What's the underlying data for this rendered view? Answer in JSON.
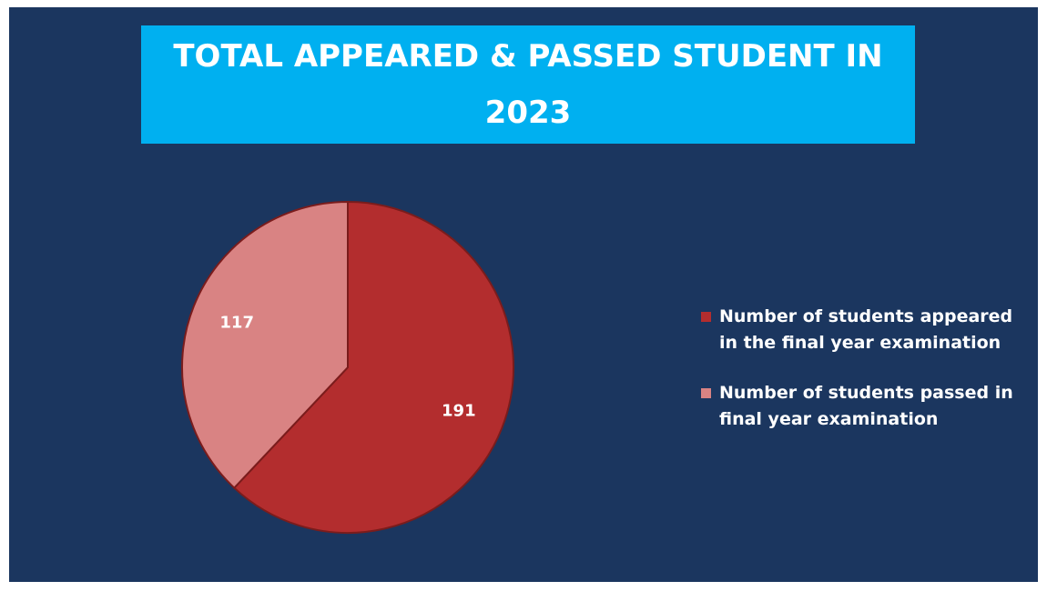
{
  "chart_data": {
    "type": "pie",
    "title": "TOTAL APPEARED & PASSED STUDENT IN 2023",
    "categories": [
      "Number of students appeared in the final year examination",
      "Number of students passed in final year examination"
    ],
    "values": [
      191,
      117
    ],
    "colors": [
      "#b32d2e",
      "#d98383"
    ],
    "legend": "right"
  }
}
